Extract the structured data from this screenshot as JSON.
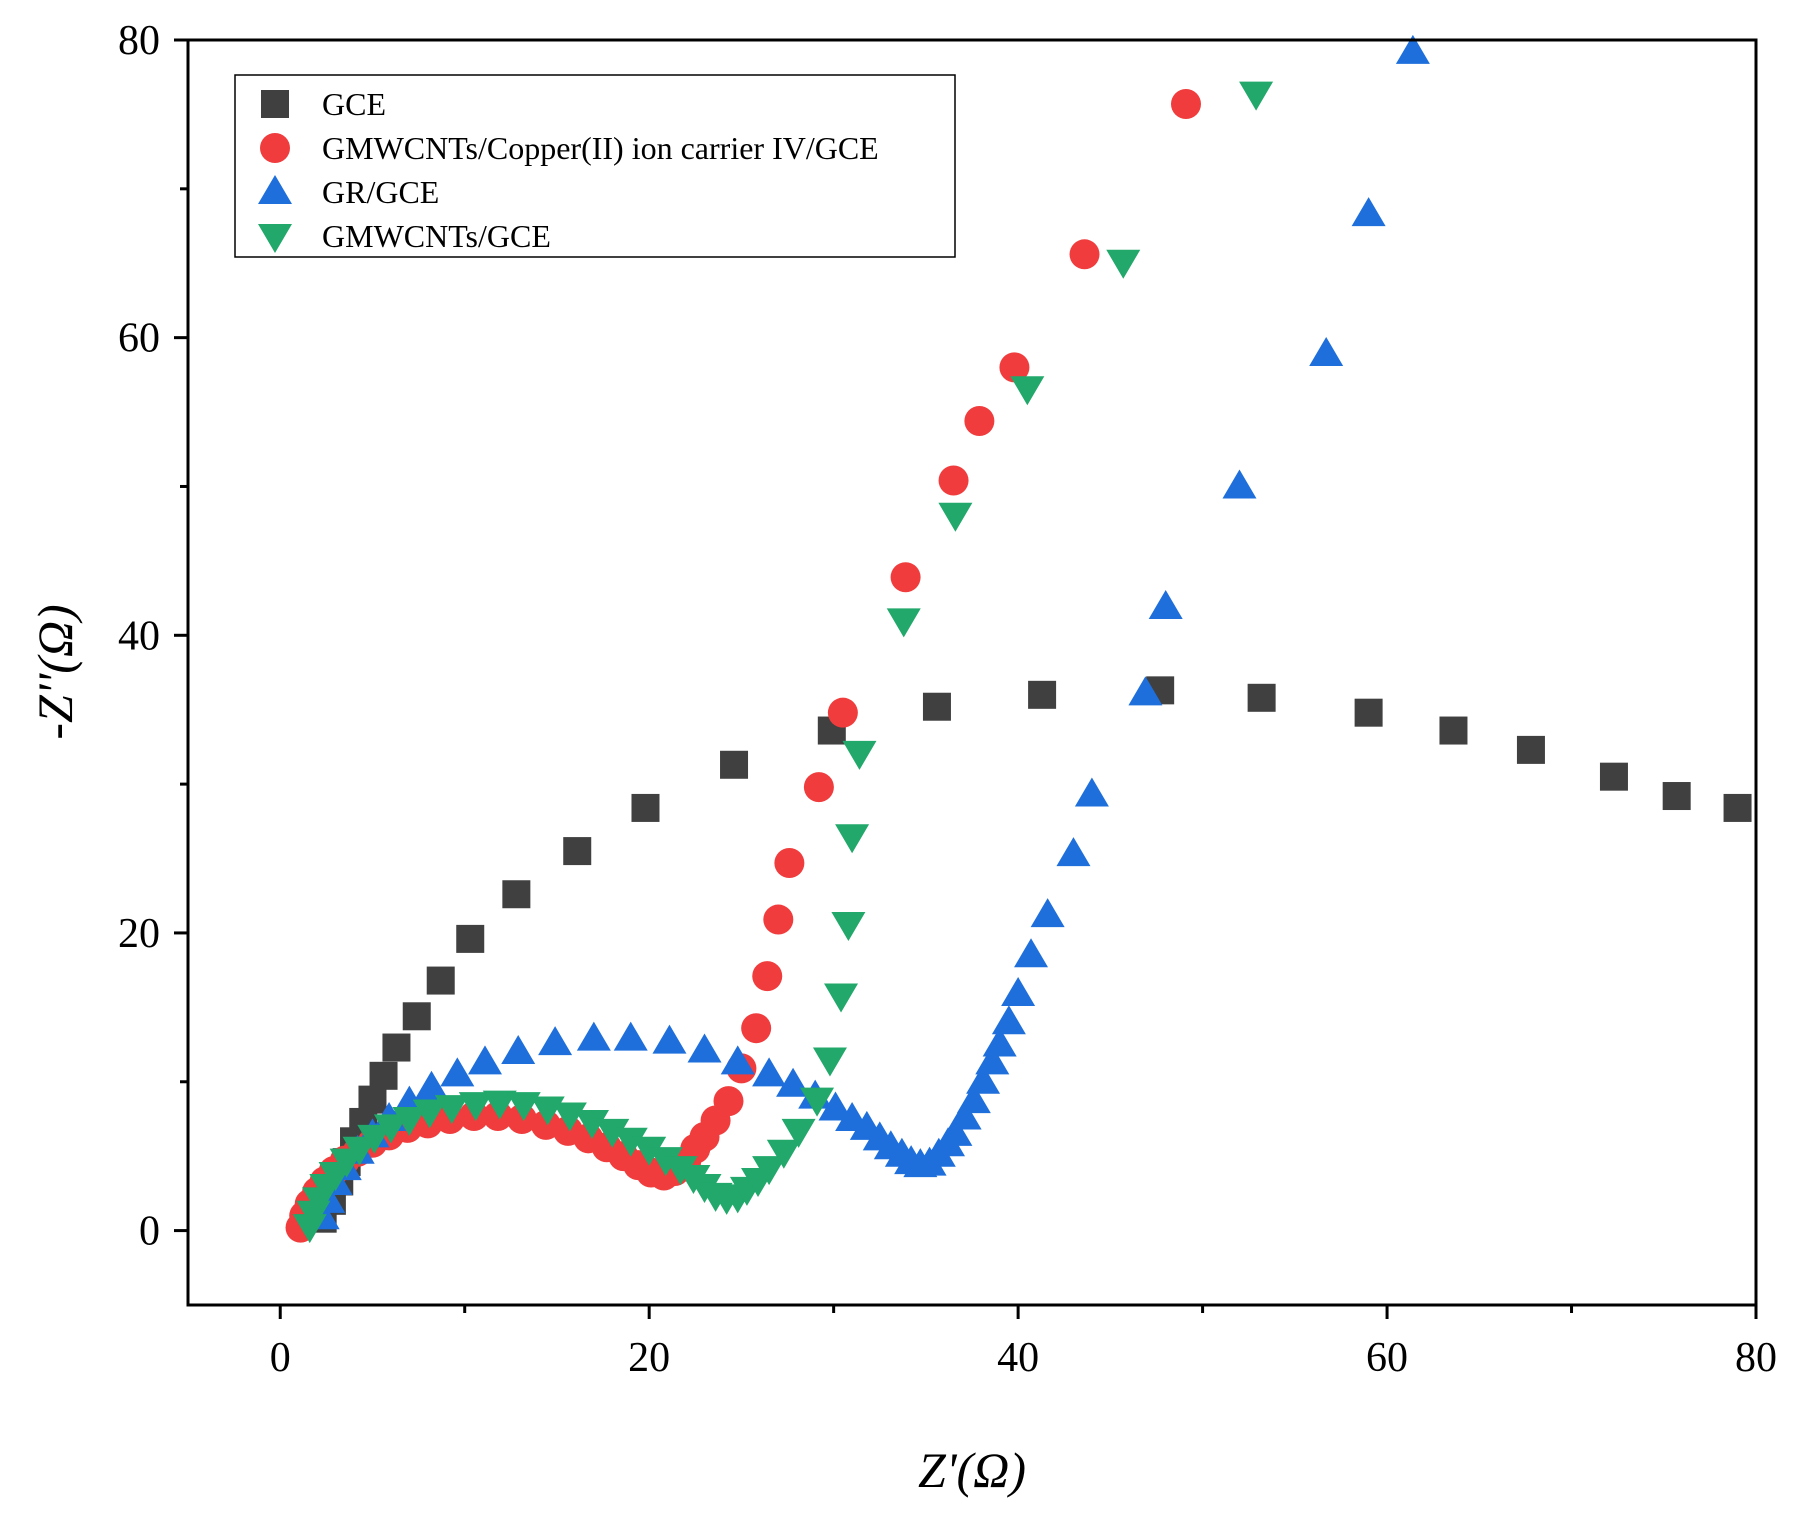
{
  "chart_data": {
    "type": "scatter",
    "xlabel": "Z'(Ω)",
    "ylabel": "-Z''(Ω)",
    "xlim": [
      -5,
      80
    ],
    "ylim": [
      -5,
      80
    ],
    "xticks": [
      0,
      20,
      40,
      60,
      80
    ],
    "yticks": [
      0,
      20,
      40,
      60,
      80
    ],
    "legend_position": "top-left",
    "grid": false,
    "series": [
      {
        "name": "GCE",
        "marker": "square",
        "color": "#404040",
        "points": [
          [
            2.3,
            0.8
          ],
          [
            2.8,
            2.0
          ],
          [
            3.2,
            3.3
          ],
          [
            3.6,
            4.6
          ],
          [
            4.0,
            6.0
          ],
          [
            4.5,
            7.3
          ],
          [
            5.0,
            8.8
          ],
          [
            5.6,
            10.4
          ],
          [
            6.3,
            12.3
          ],
          [
            7.4,
            14.4
          ],
          [
            8.7,
            16.8
          ],
          [
            10.3,
            19.6
          ],
          [
            12.8,
            22.6
          ],
          [
            16.1,
            25.5
          ],
          [
            19.8,
            28.4
          ],
          [
            24.6,
            31.3
          ],
          [
            29.9,
            33.6
          ],
          [
            35.6,
            35.2
          ],
          [
            41.3,
            36.0
          ],
          [
            47.7,
            36.3
          ],
          [
            53.2,
            35.8
          ],
          [
            59.0,
            34.8
          ],
          [
            63.6,
            33.6
          ],
          [
            67.8,
            32.3
          ],
          [
            72.3,
            30.5
          ],
          [
            75.7,
            29.2
          ],
          [
            79.0,
            28.4
          ]
        ]
      },
      {
        "name": "GMWCNTs/Copper(II) ion carrier IV/GCE",
        "marker": "circle",
        "color": "#f03c3c",
        "points": [
          [
            1.1,
            0.2
          ],
          [
            1.3,
            1.0
          ],
          [
            1.6,
            1.8
          ],
          [
            2.0,
            2.6
          ],
          [
            2.4,
            3.3
          ],
          [
            2.9,
            4.0
          ],
          [
            3.5,
            4.7
          ],
          [
            4.2,
            5.3
          ],
          [
            5.0,
            5.9
          ],
          [
            5.9,
            6.4
          ],
          [
            6.9,
            6.9
          ],
          [
            8.0,
            7.2
          ],
          [
            9.2,
            7.5
          ],
          [
            10.5,
            7.7
          ],
          [
            11.8,
            7.7
          ],
          [
            13.1,
            7.5
          ],
          [
            14.4,
            7.1
          ],
          [
            15.6,
            6.7
          ],
          [
            16.7,
            6.2
          ],
          [
            17.7,
            5.6
          ],
          [
            18.6,
            5.0
          ],
          [
            19.4,
            4.4
          ],
          [
            20.1,
            3.9
          ],
          [
            20.8,
            3.7
          ],
          [
            21.4,
            4.0
          ],
          [
            22.0,
            4.6
          ],
          [
            22.5,
            5.5
          ],
          [
            23.0,
            6.3
          ],
          [
            23.6,
            7.4
          ],
          [
            24.3,
            8.7
          ],
          [
            25.0,
            10.9
          ],
          [
            25.8,
            13.6
          ],
          [
            26.4,
            17.1
          ],
          [
            27.0,
            20.9
          ],
          [
            27.6,
            24.7
          ],
          [
            29.2,
            29.8
          ],
          [
            30.5,
            34.8
          ],
          [
            33.9,
            43.9
          ],
          [
            36.5,
            50.4
          ],
          [
            37.9,
            54.4
          ],
          [
            39.8,
            58.0
          ],
          [
            43.6,
            65.6
          ],
          [
            49.1,
            75.7
          ]
        ]
      },
      {
        "name": "GR/GCE",
        "marker": "triangle-up",
        "color": "#1e6fdc",
        "points": [
          [
            2.3,
            0.9
          ],
          [
            2.6,
            2.0
          ],
          [
            3.0,
            3.2
          ],
          [
            3.5,
            4.2
          ],
          [
            4.2,
            5.3
          ],
          [
            5.0,
            6.4
          ],
          [
            5.9,
            7.5
          ],
          [
            7.0,
            8.6
          ],
          [
            8.2,
            9.6
          ],
          [
            9.6,
            10.5
          ],
          [
            11.1,
            11.3
          ],
          [
            12.9,
            12.0
          ],
          [
            14.9,
            12.6
          ],
          [
            17.0,
            12.9
          ],
          [
            19.0,
            12.9
          ],
          [
            21.1,
            12.7
          ],
          [
            23.0,
            12.1
          ],
          [
            24.8,
            11.3
          ],
          [
            26.5,
            10.5
          ],
          [
            27.8,
            9.8
          ],
          [
            29.0,
            9.0
          ],
          [
            30.1,
            8.2
          ],
          [
            31.0,
            7.5
          ],
          [
            31.8,
            6.9
          ],
          [
            32.5,
            6.2
          ],
          [
            33.1,
            5.6
          ],
          [
            33.7,
            5.1
          ],
          [
            34.2,
            4.6
          ],
          [
            34.7,
            4.4
          ],
          [
            35.2,
            4.5
          ],
          [
            35.7,
            5.1
          ],
          [
            36.2,
            5.8
          ],
          [
            36.6,
            6.5
          ],
          [
            37.1,
            7.6
          ],
          [
            37.6,
            8.7
          ],
          [
            38.1,
            10.0
          ],
          [
            38.6,
            11.3
          ],
          [
            39.0,
            12.5
          ],
          [
            39.5,
            14.0
          ],
          [
            40.0,
            15.9
          ],
          [
            40.7,
            18.5
          ],
          [
            41.6,
            21.2
          ],
          [
            43.0,
            25.3
          ],
          [
            44.0,
            29.3
          ],
          [
            46.9,
            36.1
          ],
          [
            48.0,
            41.9
          ],
          [
            52.0,
            50.0
          ],
          [
            56.7,
            58.9
          ],
          [
            59.0,
            68.3
          ],
          [
            61.4,
            79.2
          ]
        ]
      },
      {
        "name": "GMWCNTs/GCE",
        "marker": "triangle-down",
        "color": "#21a86a",
        "points": [
          [
            1.6,
            0.3
          ],
          [
            1.8,
            1.2
          ],
          [
            2.1,
            2.1
          ],
          [
            2.5,
            3.0
          ],
          [
            3.0,
            3.8
          ],
          [
            3.6,
            4.7
          ],
          [
            4.3,
            5.5
          ],
          [
            5.1,
            6.3
          ],
          [
            6.0,
            7.0
          ],
          [
            7.0,
            7.5
          ],
          [
            8.1,
            8.0
          ],
          [
            9.3,
            8.3
          ],
          [
            10.6,
            8.5
          ],
          [
            11.9,
            8.6
          ],
          [
            13.2,
            8.5
          ],
          [
            14.5,
            8.2
          ],
          [
            15.7,
            7.8
          ],
          [
            16.9,
            7.3
          ],
          [
            18.0,
            6.7
          ],
          [
            19.0,
            6.1
          ],
          [
            20.0,
            5.5
          ],
          [
            20.9,
            4.8
          ],
          [
            21.7,
            4.2
          ],
          [
            22.4,
            3.6
          ],
          [
            23.0,
            3.0
          ],
          [
            23.6,
            2.4
          ],
          [
            24.2,
            2.2
          ],
          [
            24.8,
            2.3
          ],
          [
            25.3,
            2.8
          ],
          [
            25.9,
            3.4
          ],
          [
            26.5,
            4.2
          ],
          [
            27.3,
            5.3
          ],
          [
            28.1,
            6.7
          ],
          [
            29.1,
            8.8
          ],
          [
            29.8,
            11.5
          ],
          [
            30.4,
            15.8
          ],
          [
            30.8,
            20.6
          ],
          [
            31.0,
            26.5
          ],
          [
            31.4,
            32.1
          ],
          [
            33.8,
            41.0
          ],
          [
            36.6,
            48.1
          ],
          [
            40.5,
            56.6
          ],
          [
            45.7,
            65.1
          ],
          [
            52.9,
            76.4
          ]
        ]
      }
    ]
  }
}
